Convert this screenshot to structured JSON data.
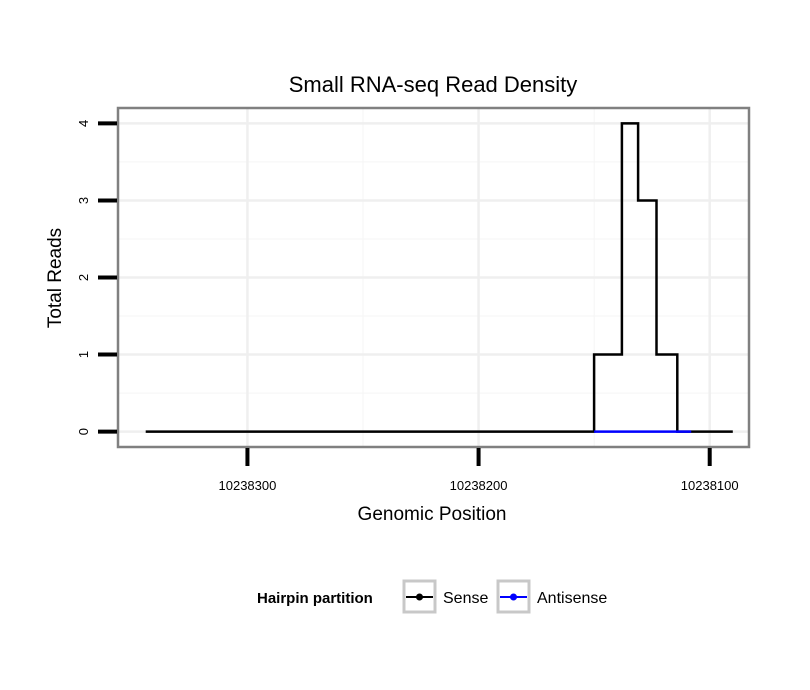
{
  "chart_data": {
    "type": "line",
    "title": "Small RNA-seq Read Density",
    "xlabel": "Genomic Position",
    "ylabel": "Total Reads",
    "x_reversed": true,
    "xlim": [
      10238356,
      10238083
    ],
    "ylim": [
      -0.2,
      4.2
    ],
    "x_ticks": [
      10238300,
      10238200,
      10238100
    ],
    "x_tick_labels": [
      "10238300",
      "10238200",
      "10238100"
    ],
    "y_ticks": [
      0,
      1,
      2,
      3,
      4
    ],
    "y_tick_labels": [
      "0",
      "1",
      "2",
      "3",
      "4"
    ],
    "grid": true,
    "legend": {
      "title": "Hairpin partition",
      "position": "bottom",
      "entries": [
        "Sense",
        "Antisense"
      ]
    },
    "series": [
      {
        "name": "Sense",
        "color": "#000000",
        "x": [
          10238344,
          10238150,
          10238150,
          10238138,
          10238138,
          10238131,
          10238131,
          10238123,
          10238123,
          10238114,
          10238114,
          10238107,
          10238107,
          10238090
        ],
        "y": [
          0,
          0,
          1,
          1,
          4,
          4,
          3,
          3,
          1,
          1,
          0,
          0,
          0,
          0
        ]
      },
      {
        "name": "Antisense",
        "color": "#0000ff",
        "x": [
          10238150,
          10238108
        ],
        "y": [
          0,
          0
        ]
      }
    ]
  }
}
